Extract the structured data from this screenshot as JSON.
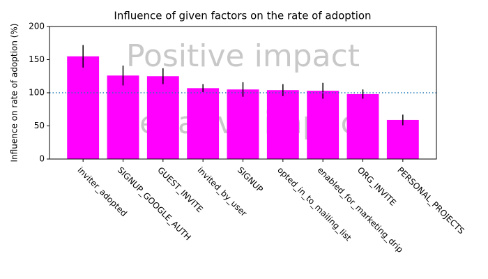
{
  "chart_data": {
    "type": "bar",
    "title": "Influence of given factors on the rate of adoption",
    "y_label": "Influence on rate of adoption (%)",
    "categories": [
      "inviter_adopted",
      "SIGNUP_GOOGLE_AUTH",
      "GUEST_INVITE",
      "invited_by_user",
      "SIGNUP",
      "opted_in_to_mailing_list",
      "enabled_for_marketing_drip",
      "ORG_INVITE",
      "PERSONAL_PROJECTS"
    ],
    "values": [
      155,
      126,
      125,
      107,
      105,
      104,
      103,
      98,
      59
    ],
    "errors": [
      17,
      15,
      12,
      6,
      11,
      9,
      12,
      7,
      8
    ],
    "color": "#ff00ff",
    "error_color": "#000000",
    "reference_line": 100,
    "reference_color": "#1f77b4",
    "annotations": [
      "Positive impact",
      "Negative impact"
    ],
    "ylim": [
      0,
      200
    ],
    "yticks": [
      0,
      50,
      100,
      150,
      200
    ],
    "grid": false
  }
}
